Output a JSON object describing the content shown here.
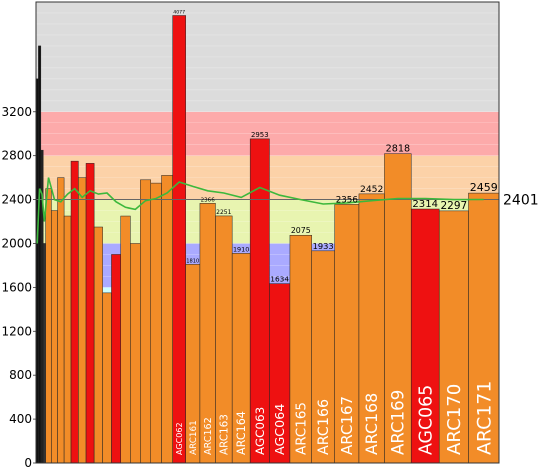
{
  "chart_data": {
    "type": "bar",
    "ylim": [
      0,
      4200
    ],
    "ytick_labels": [
      "0",
      "400",
      "800",
      "1200",
      "1600",
      "2000",
      "2400",
      "2800",
      "3200"
    ],
    "ytick_values": [
      0,
      400,
      800,
      1200,
      1600,
      2000,
      2400,
      2800,
      3200
    ],
    "rating_bands": [
      {
        "from": 0,
        "to": 1200,
        "color": "#ffffff"
      },
      {
        "from": 1200,
        "to": 1400,
        "color": "#cdfecd"
      },
      {
        "from": 1400,
        "to": 1600,
        "color": "#cdffff"
      },
      {
        "from": 1600,
        "to": 2000,
        "color": "#aaaaff"
      },
      {
        "from": 2000,
        "to": 2400,
        "color": "#e8f4b0"
      },
      {
        "from": 2400,
        "to": 2800,
        "color": "#fcd2a8"
      },
      {
        "from": 2800,
        "to": 3200,
        "color": "#fdaaaa"
      },
      {
        "from": 3200,
        "to": 4200,
        "color": "#dcdcdc"
      }
    ],
    "current_rating": {
      "value": 2401,
      "label": "2401"
    },
    "bars": [
      {
        "label": "",
        "value": 3500,
        "color": "#111111"
      },
      {
        "label": "",
        "value": 3800,
        "color": "#111111"
      },
      {
        "label": "",
        "value": 2850,
        "color": "#222222"
      },
      {
        "label": "",
        "value": 2000,
        "color": "#333333"
      },
      {
        "label": "",
        "value": 2500,
        "color": "#f28c28"
      },
      {
        "label": "",
        "value": 2300,
        "color": "#f28c28"
      },
      {
        "label": "",
        "value": 2600,
        "color": "#f28c28"
      },
      {
        "label": "",
        "value": 2250,
        "color": "#f28c28"
      },
      {
        "label": "",
        "value": 2750,
        "color": "#ee1111"
      },
      {
        "label": "",
        "value": 2600,
        "color": "#f28c28"
      },
      {
        "label": "",
        "value": 2730,
        "color": "#ee1111"
      },
      {
        "label": "",
        "value": 2150,
        "color": "#f28c28"
      },
      {
        "label": "",
        "value": 1550,
        "color": "#f28c28"
      },
      {
        "label": "",
        "value": 1900,
        "color": "#ee1111"
      },
      {
        "label": "",
        "value": 2250,
        "color": "#f28c28"
      },
      {
        "label": "",
        "value": 2000,
        "color": "#f28c28"
      },
      {
        "label": "",
        "value": 2580,
        "color": "#f28c28"
      },
      {
        "label": "",
        "value": 2550,
        "color": "#f28c28"
      },
      {
        "label": "",
        "value": 2620,
        "color": "#f28c28"
      },
      {
        "label": "AGC062",
        "value": 4077,
        "color": "#ee1111"
      },
      {
        "label": "ARC161",
        "value": 1810,
        "color": "#f28c28"
      },
      {
        "label": "ARC162",
        "value": 2366,
        "color": "#f28c28"
      },
      {
        "label": "ARC163",
        "value": 2251,
        "color": "#f28c28"
      },
      {
        "label": "ARC164",
        "value": 1910,
        "color": "#f28c28"
      },
      {
        "label": "AGC063",
        "value": 2953,
        "color": "#ee1111"
      },
      {
        "label": "AGC064",
        "value": 1634,
        "color": "#ee1111"
      },
      {
        "label": "ARC165",
        "value": 2075,
        "color": "#f28c28"
      },
      {
        "label": "ARC166",
        "value": 1933,
        "color": "#f28c28"
      },
      {
        "label": "ARC167",
        "value": 2356,
        "color": "#f28c28"
      },
      {
        "label": "ARC168",
        "value": 2452,
        "color": "#f28c28"
      },
      {
        "label": "ARC169",
        "value": 2818,
        "color": "#f28c28"
      },
      {
        "label": "AGC065",
        "value": 2314,
        "color": "#ee1111"
      },
      {
        "label": "ARC170",
        "value": 2297,
        "color": "#f28c28"
      },
      {
        "label": "ARC171",
        "value": 2459,
        "color": "#f28c28"
      }
    ],
    "line_series": {
      "name": "",
      "color": "#3cb83c",
      "values": [
        2000,
        2500,
        2450,
        2200,
        2600,
        2400,
        2380,
        2450,
        2500,
        2420,
        2480,
        2450,
        2460,
        2380,
        2330,
        2310,
        2390,
        2410,
        2460,
        2560,
        2520,
        2480,
        2460,
        2420,
        2510,
        2440,
        2400,
        2360,
        2370,
        2390,
        2410,
        2410,
        2400,
        2401
      ]
    }
  }
}
